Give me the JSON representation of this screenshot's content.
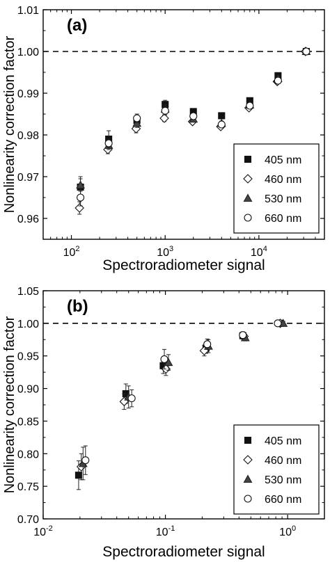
{
  "chart_data": [
    {
      "type": "scatter",
      "panel_label": "(a)",
      "xlabel": "Spectroradiometer signal",
      "ylabel": "Nonlinearity correction factor",
      "xscale": "log",
      "xlim": [
        50,
        50000
      ],
      "ylim": [
        0.955,
        1.01
      ],
      "x_ticks": [
        100,
        1000,
        10000
      ],
      "x_tick_base": "10",
      "x_tick_exps": [
        "2",
        "3",
        "4"
      ],
      "y_ticks": [
        0.96,
        0.97,
        0.98,
        0.99,
        1.0,
        1.01
      ],
      "y_tick_labels": [
        "0.96",
        "0.97",
        "0.98",
        "0.99",
        "1.00",
        "1.01"
      ],
      "reference_line": 1.0,
      "legend_position": "bottom-right",
      "series": [
        {
          "name": "405 nm",
          "marker": "square",
          "points": [
            [
              125,
              0.9675,
              0.0025
            ],
            [
              250,
              0.979,
              0.002
            ],
            [
              500,
              0.9835,
              0.001
            ],
            [
              1000,
              0.9873,
              0.001
            ],
            [
              2000,
              0.9856,
              0.0005
            ],
            [
              4000,
              0.9846,
              0.0005
            ],
            [
              8000,
              0.9882,
              0.0005
            ],
            [
              16000,
              0.9942,
              0.0005
            ],
            [
              32000,
              1.0,
              0.0005
            ]
          ]
        },
        {
          "name": "460 nm",
          "marker": "diamond-open",
          "points": [
            [
              122,
              0.9625,
              0.0015
            ],
            [
              245,
              0.9765,
              0.001
            ],
            [
              490,
              0.9815,
              0.001
            ],
            [
              980,
              0.984,
              0.0008
            ],
            [
              1960,
              0.9832,
              0.0005
            ],
            [
              3920,
              0.982,
              0.0005
            ],
            [
              7840,
              0.9865,
              0.0005
            ],
            [
              15700,
              0.9928,
              0.0005
            ],
            [
              31400,
              1.0,
              0.0005
            ]
          ]
        },
        {
          "name": "530 nm",
          "marker": "triangle",
          "points": [
            [
              125,
              0.968,
              0.0015
            ],
            [
              250,
              0.9775,
              0.001
            ],
            [
              500,
              0.9828,
              0.001
            ],
            [
              1000,
              0.9862,
              0.001
            ],
            [
              2000,
              0.9838,
              0.0005
            ],
            [
              4000,
              0.9828,
              0.0005
            ],
            [
              8000,
              0.9872,
              0.0005
            ],
            [
              16000,
              0.9935,
              0.0005
            ],
            [
              32000,
              1.0,
              0.0005
            ]
          ]
        },
        {
          "name": "660 nm",
          "marker": "circle-open",
          "points": [
            [
              125,
              0.965,
              0.002
            ],
            [
              250,
              0.978,
              0.001
            ],
            [
              500,
              0.984,
              0.001
            ],
            [
              1000,
              0.9858,
              0.001
            ],
            [
              2000,
              0.9845,
              0.0005
            ],
            [
              4000,
              0.9825,
              0.0005
            ],
            [
              8000,
              0.987,
              0.0005
            ],
            [
              16000,
              0.993,
              0.0005
            ],
            [
              32000,
              1.0,
              0.0005
            ]
          ]
        }
      ]
    },
    {
      "type": "scatter",
      "panel_label": "(b)",
      "xlabel": "Spectroradiometer signal",
      "ylabel": "Nonlinearity correction factor",
      "xscale": "log",
      "xlim": [
        0.01,
        2
      ],
      "ylim": [
        0.7,
        1.05
      ],
      "x_ticks": [
        0.01,
        0.1,
        1
      ],
      "x_tick_base": "10",
      "x_tick_exps": [
        "-2",
        "-1",
        "0"
      ],
      "y_ticks": [
        0.7,
        0.75,
        0.8,
        0.85,
        0.9,
        0.95,
        1.0,
        1.05
      ],
      "y_tick_labels": [
        "0.70",
        "0.75",
        "0.80",
        "0.85",
        "0.90",
        "0.95",
        "1.00",
        "1.05"
      ],
      "reference_line": 1.0,
      "legend_position": "bottom-right",
      "series": [
        {
          "name": "405 nm",
          "marker": "square",
          "points": [
            [
              0.0195,
              0.767,
              0.022
            ],
            [
              0.0475,
              0.892,
              0.015
            ],
            [
              0.096,
              0.935,
              0.012
            ],
            [
              0.215,
              0.962,
              0.008
            ],
            [
              0.43,
              0.981,
              0.005
            ],
            [
              0.86,
              1.0,
              0.003
            ]
          ]
        },
        {
          "name": "460 nm",
          "marker": "diamond-open",
          "points": [
            [
              0.0205,
              0.78,
              0.02
            ],
            [
              0.046,
              0.88,
              0.012
            ],
            [
              0.101,
              0.93,
              0.01
            ],
            [
              0.208,
              0.958,
              0.008
            ],
            [
              0.44,
              0.98,
              0.005
            ],
            [
              0.87,
              1.0,
              0.003
            ]
          ]
        },
        {
          "name": "530 nm",
          "marker": "triangle",
          "points": [
            [
              0.0212,
              0.785,
              0.025
            ],
            [
              0.05,
              0.887,
              0.017
            ],
            [
              0.106,
              0.94,
              0.012
            ],
            [
              0.225,
              0.965,
              0.01
            ],
            [
              0.45,
              0.978,
              0.005
            ],
            [
              0.92,
              1.0,
              0.003
            ]
          ]
        },
        {
          "name": "660 nm",
          "marker": "circle-open",
          "points": [
            [
              0.0222,
              0.79,
              0.022
            ],
            [
              0.053,
              0.885,
              0.013
            ],
            [
              0.098,
              0.945,
              0.015
            ],
            [
              0.22,
              0.968,
              0.008
            ],
            [
              0.43,
              0.982,
              0.005
            ],
            [
              0.83,
              1.0,
              0.003
            ]
          ]
        }
      ]
    }
  ]
}
